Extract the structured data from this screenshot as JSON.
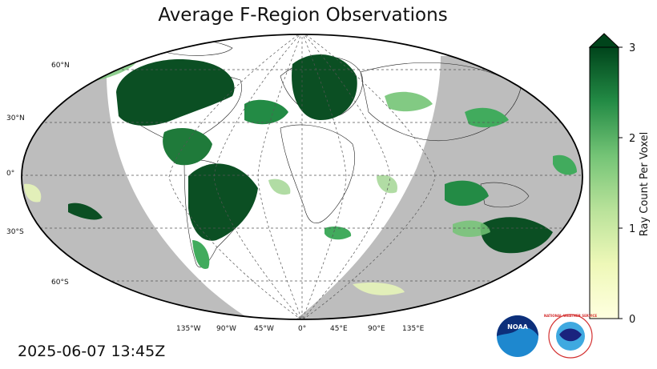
{
  "title": "Average F-Region Observations",
  "timestamp": "2025-06-07 13:45Z",
  "lat_labels": [
    "60°N",
    "30°N",
    "0°",
    "30°S",
    "60°S"
  ],
  "lon_labels": [
    "135°W",
    "90°W",
    "45°W",
    "0°",
    "45°E",
    "90°E",
    "135°E"
  ],
  "colorbar": {
    "label": "Ray Count Per Voxel",
    "ticks": [
      "0",
      "1",
      "2",
      "3"
    ],
    "min": 0,
    "max": 3,
    "low_color": "#ffffe0",
    "high_color": "#00441b",
    "extend": "max"
  },
  "colors": {
    "night_shade": "#bdbdbd",
    "dense": "#0b4f23",
    "medium": "#3e9a52",
    "light": "#a8d89a",
    "faint": "#e6f4b8"
  },
  "logos": {
    "noaa": "NOAA",
    "nws": "NATIONAL WEATHER SERVICE"
  }
}
